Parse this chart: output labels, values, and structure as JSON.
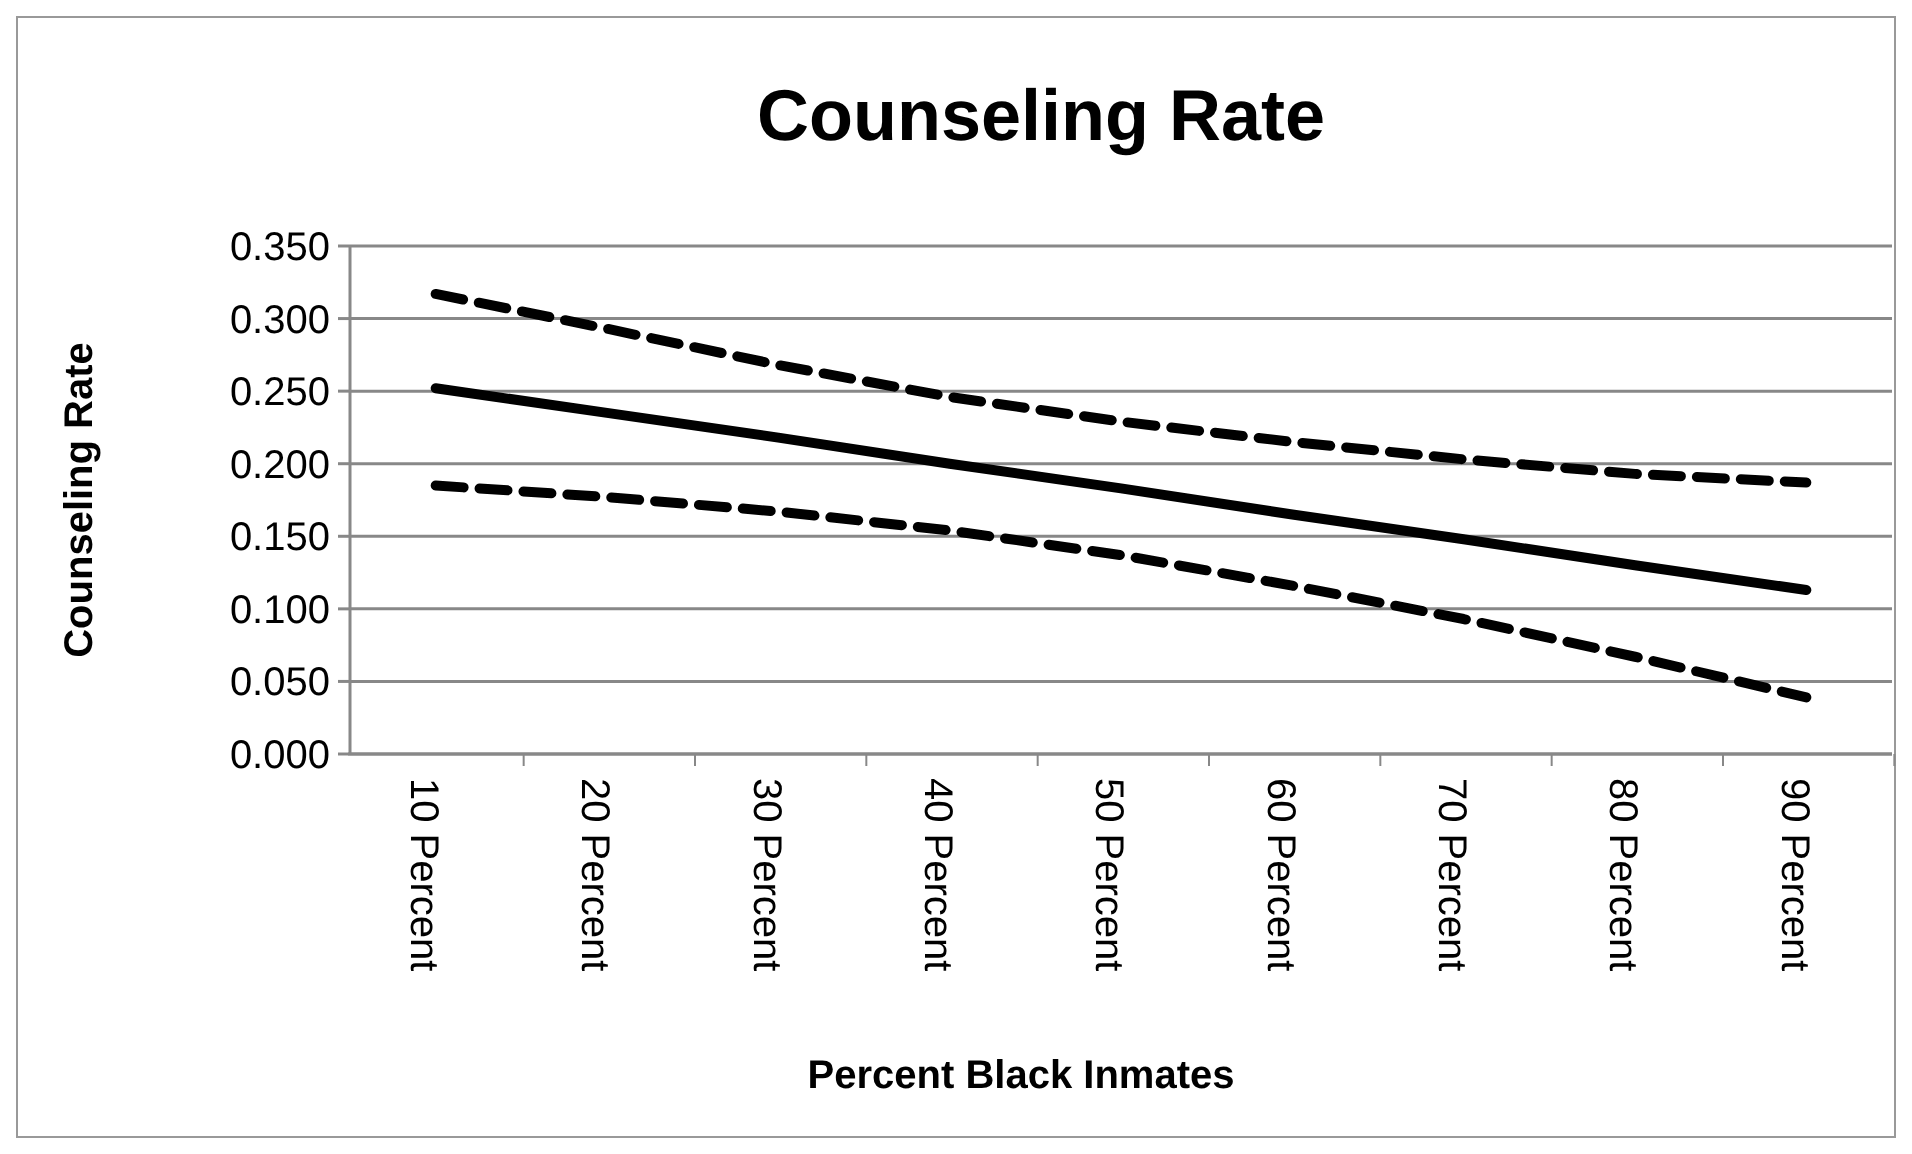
{
  "chart_data": {
    "type": "line",
    "title": "Counseling Rate",
    "xlabel": "Percent Black Inmates",
    "ylabel": "Counseling Rate",
    "categories": [
      "10 Percent",
      "20 Percent",
      "30 Percent",
      "40 Percent",
      "50 Percent",
      "60 Percent",
      "70 Percent",
      "80 Percent",
      "90 Percent"
    ],
    "series": [
      {
        "color": "#000000",
        "line_style": "dashed",
        "values": [
          0.317,
          0.293,
          0.268,
          0.246,
          0.229,
          0.215,
          0.203,
          0.193,
          0.187
        ]
      },
      {
        "color": "#000000",
        "line_style": "solid",
        "values": [
          0.252,
          0.235,
          0.218,
          0.2,
          0.183,
          0.165,
          0.148,
          0.13,
          0.113
        ]
      },
      {
        "color": "#000000",
        "line_style": "dashed",
        "values": [
          0.185,
          0.177,
          0.167,
          0.154,
          0.137,
          0.116,
          0.093,
          0.067,
          0.039
        ]
      }
    ],
    "ylim": [
      0,
      0.35
    ],
    "yticks": [
      {
        "value": 0,
        "label": "0.000"
      },
      {
        "value": 0.05,
        "label": "0.050"
      },
      {
        "value": 0.1,
        "label": "0.100"
      },
      {
        "value": 0.15,
        "label": "0.150"
      },
      {
        "value": 0.2,
        "label": "0.200"
      },
      {
        "value": 0.25,
        "label": "0.250"
      },
      {
        "value": 0.3,
        "label": "0.300"
      },
      {
        "value": 0.35,
        "label": "0.350"
      }
    ],
    "grid": "y",
    "marker": "none"
  }
}
